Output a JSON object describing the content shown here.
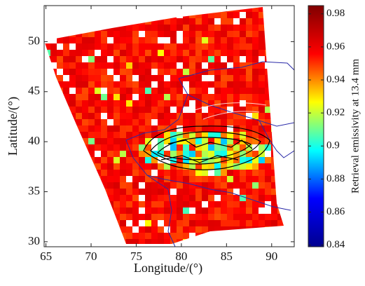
{
  "chart_data": {
    "type": "map",
    "xlabel": "Longitude/(°)",
    "ylabel": "Latitude/(°)",
    "xlim": [
      64.8,
      92.5
    ],
    "xticks": [
      65,
      70,
      75,
      80,
      85,
      90
    ],
    "ylim": [
      29.5,
      53.6
    ],
    "yticks": [
      30,
      35,
      40,
      45,
      50
    ],
    "colorbar": {
      "label": "Retrieval emissivity at 13.4 mm",
      "lim": [
        0.839,
        0.985
      ],
      "ticks": [
        0.84,
        0.86,
        0.88,
        0.9,
        0.92,
        0.94,
        0.96,
        0.98
      ],
      "colormap": [
        "#00008f",
        "#0000ff",
        "#00ffff",
        "#ffff00",
        "#ff0000",
        "#800000"
      ]
    }
  }
}
